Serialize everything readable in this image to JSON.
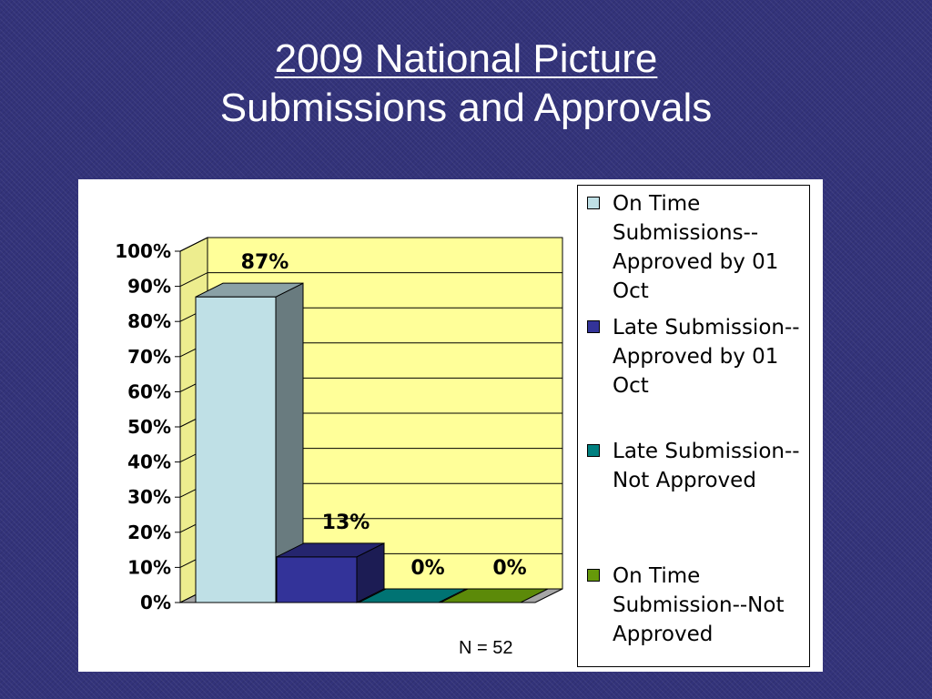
{
  "title": {
    "line1": "2009 National Picture",
    "line2": "Submissions and Approvals"
  },
  "chart_data": {
    "type": "bar",
    "title": "",
    "xlabel": "",
    "ylabel": "",
    "ylim": [
      0,
      100
    ],
    "y_ticks": [
      "0%",
      "10%",
      "20%",
      "30%",
      "40%",
      "50%",
      "60%",
      "70%",
      "80%",
      "90%",
      "100%"
    ],
    "grid": true,
    "three_d": true,
    "legend_position": "right",
    "series": [
      {
        "name": "On Time Submissions--Approved by 01 Oct",
        "value": 87,
        "label": "87%",
        "color": "#bfe0e6"
      },
      {
        "name": "Late Submission--Approved by 01 Oct",
        "value": 13,
        "label": "13%",
        "color": "#333399"
      },
      {
        "name": "Late Submission--Not Approved",
        "value": 0,
        "label": "0%",
        "color": "#008080"
      },
      {
        "name": "On Time Submission--Not Approved",
        "value": 0,
        "label": "0%",
        "color": "#66990a"
      }
    ],
    "plot_background": "#ffff99",
    "annotation": "N = 52"
  }
}
